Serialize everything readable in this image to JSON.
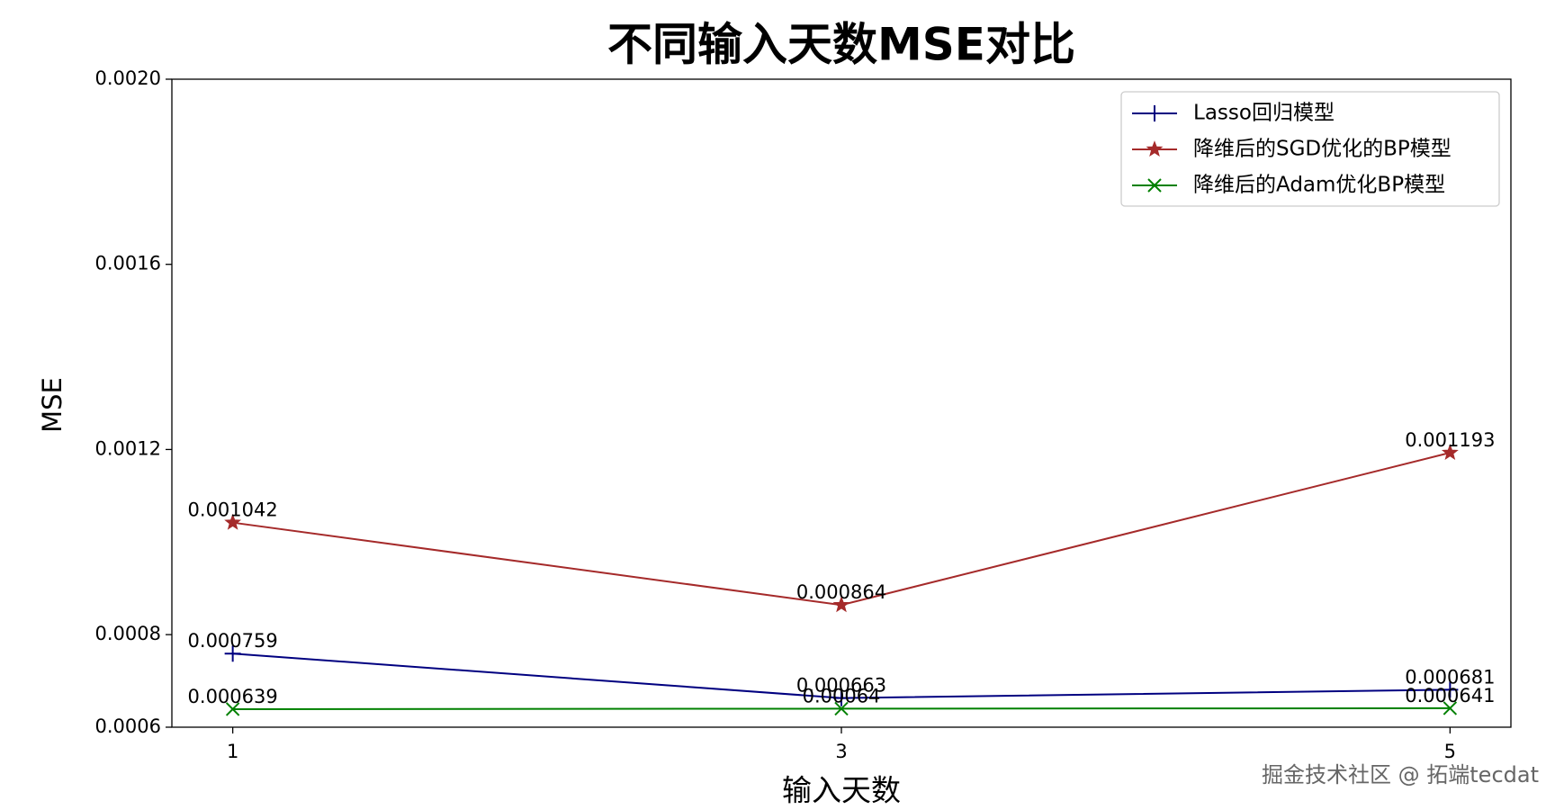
{
  "chart_data": {
    "type": "line",
    "title": "不同输入天数MSE对比",
    "x_label": "输入天数",
    "y_label": "MSE",
    "x": [
      1,
      3,
      5
    ],
    "series": [
      {
        "name": "Lasso回归模型",
        "color": "#000080",
        "marker": "plus",
        "values": [
          0.000759,
          0.000663,
          0.000681
        ]
      },
      {
        "name": "降维后的SGD优化的BP模型",
        "color": "#a52a2a",
        "marker": "star",
        "values": [
          0.001042,
          0.000864,
          0.001193
        ]
      },
      {
        "name": "降维后的Adam优化BP模型",
        "color": "#008000",
        "marker": "x",
        "values": [
          0.000639,
          0.00064,
          0.000641
        ]
      }
    ],
    "xlim": [
      0.8,
      5.2
    ],
    "xticks": [
      1,
      3,
      5
    ],
    "ylim": [
      0.0006,
      0.002
    ],
    "yticks": [
      0.0006,
      0.0008,
      0.0012,
      0.0016,
      {
        "value": 0.002,
        "label": "0.0020"
      }
    ],
    "legend": "upper right",
    "grid": false,
    "watermark": "掘金技术社区 @ 拓端tecdat"
  }
}
